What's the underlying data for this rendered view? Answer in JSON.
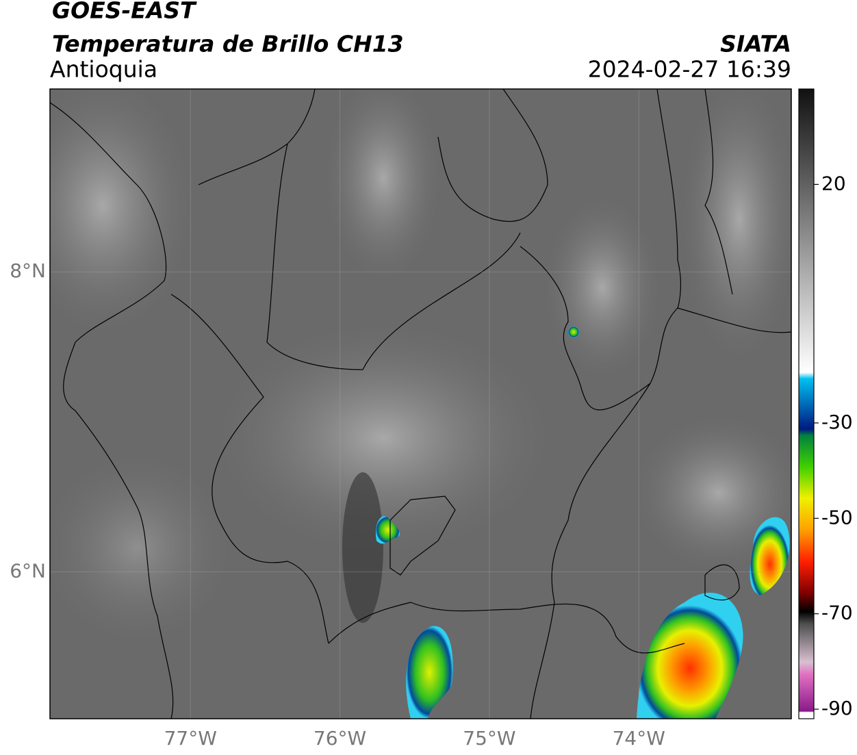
{
  "map": {
    "title": "GOES-EAST",
    "subtitle": "Temperatura de Brillo CH13",
    "region": "Antioquia",
    "source": "SIATA",
    "datetime": "2024-02-27 16:39",
    "xlim": [
      -77.94,
      -72.98
    ],
    "ylim": [
      5.02,
      9.22
    ],
    "xticks": [
      {
        "value": -77,
        "label": "77°W"
      },
      {
        "value": -76,
        "label": "76°W"
      },
      {
        "value": -75,
        "label": "75°W"
      },
      {
        "value": -74,
        "label": "74°W"
      }
    ],
    "yticks": [
      {
        "value": 8,
        "label": "8°N"
      },
      {
        "value": 6,
        "label": "6°N"
      }
    ],
    "grid": true,
    "colorbar": {
      "lim": [
        -92,
        40
      ],
      "ticks": [
        20,
        -30,
        -50,
        -70,
        -90
      ]
    }
  }
}
